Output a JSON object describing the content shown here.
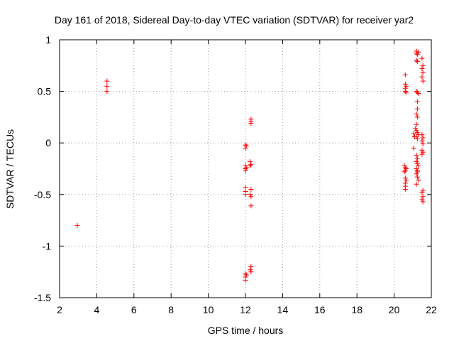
{
  "chart_data": {
    "type": "scatter",
    "title": "Day 161 of 2018, Sidereal Day-to-day VTEC variation (SDTVAR) for receiver yar2",
    "xlabel": "GPS time / hours",
    "ylabel": "SDTVAR / TECUs",
    "xlim": [
      2,
      22
    ],
    "ylim": [
      -1.5,
      1
    ],
    "grid": true,
    "xticks": [
      2,
      4,
      6,
      8,
      10,
      12,
      14,
      16,
      18,
      20,
      22
    ],
    "xtick_labels": [
      "2",
      "4",
      "6",
      "8",
      "10",
      "12",
      "14",
      "16",
      "18",
      "20",
      "22"
    ],
    "yticks": [
      1,
      0.5,
      0,
      -0.5,
      -1,
      -1.5
    ],
    "ytick_labels": [
      "1",
      "0.5",
      "0",
      "-0.5",
      "-1",
      "-1.5"
    ],
    "marker": "+",
    "color": "#ff0000",
    "series": [
      {
        "name": "SDTVAR",
        "points": [
          [
            2.95,
            -0.8
          ],
          [
            4.55,
            0.6
          ],
          [
            4.55,
            0.55
          ],
          [
            4.55,
            0.5
          ],
          [
            12.0,
            -0.02
          ],
          [
            12.05,
            -0.03
          ],
          [
            12.0,
            -0.05
          ],
          [
            12.0,
            -0.22
          ],
          [
            12.0,
            -0.25
          ],
          [
            12.05,
            -0.24
          ],
          [
            12.0,
            -0.27
          ],
          [
            12.0,
            -0.43
          ],
          [
            12.0,
            -0.47
          ],
          [
            12.0,
            -0.5
          ],
          [
            12.0,
            -1.27
          ],
          [
            12.0,
            -1.3
          ],
          [
            12.05,
            -1.28
          ],
          [
            12.0,
            -1.33
          ],
          [
            12.3,
            0.23
          ],
          [
            12.3,
            0.21
          ],
          [
            12.3,
            0.19
          ],
          [
            12.25,
            -0.18
          ],
          [
            12.3,
            -0.21
          ],
          [
            12.25,
            -0.22
          ],
          [
            12.3,
            -0.45
          ],
          [
            12.25,
            -0.5
          ],
          [
            12.3,
            -0.52
          ],
          [
            12.3,
            -0.61
          ],
          [
            12.3,
            -1.2
          ],
          [
            12.25,
            -1.23
          ],
          [
            12.3,
            -1.25
          ],
          [
            20.6,
            0.66
          ],
          [
            20.6,
            0.57
          ],
          [
            20.65,
            0.55
          ],
          [
            20.6,
            0.53
          ],
          [
            20.6,
            0.5
          ],
          [
            20.65,
            0.49
          ],
          [
            20.55,
            -0.22
          ],
          [
            20.6,
            -0.24
          ],
          [
            20.65,
            -0.25
          ],
          [
            20.6,
            -0.27
          ],
          [
            20.55,
            -0.28
          ],
          [
            20.6,
            -0.34
          ],
          [
            20.65,
            -0.36
          ],
          [
            20.6,
            -0.39
          ],
          [
            20.6,
            -0.42
          ],
          [
            20.6,
            -0.45
          ],
          [
            21.05,
            0.09
          ],
          [
            21.1,
            0.06
          ],
          [
            21.05,
            -0.05
          ],
          [
            21.2,
            0.89
          ],
          [
            21.2,
            0.87
          ],
          [
            21.25,
            0.86
          ],
          [
            21.3,
            0.88
          ],
          [
            21.2,
            0.8
          ],
          [
            21.25,
            0.79
          ],
          [
            21.2,
            0.5
          ],
          [
            21.25,
            0.49
          ],
          [
            21.3,
            0.48
          ],
          [
            21.25,
            0.4
          ],
          [
            21.25,
            0.33
          ],
          [
            21.2,
            0.28
          ],
          [
            21.25,
            0.25
          ],
          [
            21.2,
            0.18
          ],
          [
            21.15,
            0.14
          ],
          [
            21.2,
            0.12
          ],
          [
            21.25,
            0.1
          ],
          [
            21.3,
            0.08
          ],
          [
            21.2,
            0.06
          ],
          [
            21.25,
            0.04
          ],
          [
            21.2,
            -0.12
          ],
          [
            21.25,
            -0.15
          ],
          [
            21.2,
            -0.18
          ],
          [
            21.25,
            -0.2
          ],
          [
            21.3,
            -0.22
          ],
          [
            21.2,
            -0.25
          ],
          [
            21.25,
            -0.28
          ],
          [
            21.2,
            -0.3
          ],
          [
            21.25,
            -0.33
          ],
          [
            21.3,
            -0.36
          ],
          [
            21.25,
            -0.27
          ],
          [
            21.2,
            -0.4
          ],
          [
            21.5,
            0.82
          ],
          [
            21.55,
            0.75
          ],
          [
            21.5,
            0.72
          ],
          [
            21.55,
            0.68
          ],
          [
            21.5,
            0.64
          ],
          [
            21.55,
            0.6
          ],
          [
            21.5,
            0.08
          ],
          [
            21.55,
            0.05
          ],
          [
            21.5,
            0.02
          ],
          [
            21.55,
            -0.01
          ],
          [
            21.5,
            -0.07
          ],
          [
            21.55,
            -0.09
          ],
          [
            21.5,
            -0.11
          ],
          [
            21.55,
            -0.46
          ],
          [
            21.5,
            -0.48
          ],
          [
            21.55,
            -0.52
          ],
          [
            21.5,
            -0.55
          ],
          [
            21.55,
            -0.57
          ]
        ]
      }
    ]
  }
}
